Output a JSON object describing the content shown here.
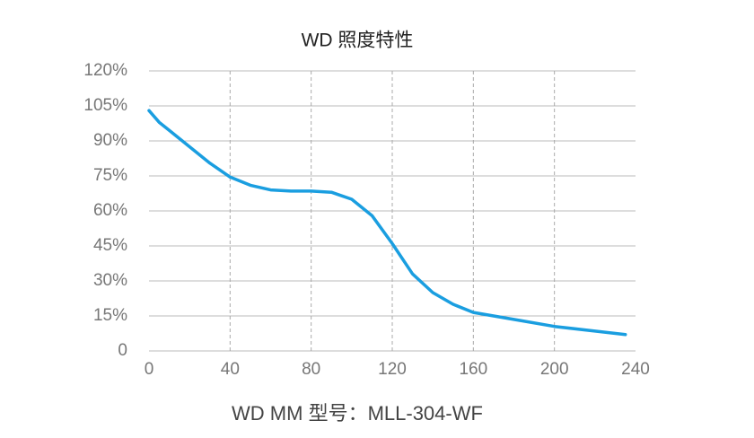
{
  "chart_data": {
    "type": "line",
    "title": "WD 照度特性",
    "x_label": "WD MM 型号：MLL-304-WF",
    "x": [
      0,
      5,
      10,
      15,
      20,
      30,
      40,
      50,
      60,
      70,
      80,
      90,
      100,
      110,
      120,
      130,
      140,
      150,
      160,
      180,
      200,
      220,
      235
    ],
    "series": [
      {
        "name": "WD",
        "color": "#1a9ee0",
        "values": [
          103,
          98,
          94.5,
          91,
          87.5,
          80.5,
          74.5,
          71,
          69,
          68.5,
          68.5,
          68,
          65,
          58,
          46,
          33,
          25,
          20,
          16.5,
          13.5,
          10.5,
          8.5,
          7
        ]
      }
    ],
    "xlim": [
      0,
      240
    ],
    "xticks": [
      0,
      40,
      80,
      120,
      160,
      200,
      240
    ],
    "ylim": [
      0,
      120
    ],
    "yticks": [
      0,
      {
        "value": 15,
        "label": "15%"
      },
      {
        "value": 30,
        "label": "30%"
      },
      {
        "value": 45,
        "label": "45%"
      },
      {
        "value": 60,
        "label": "60%"
      },
      {
        "value": 75,
        "label": "75%"
      },
      {
        "value": 90,
        "label": "90%"
      },
      {
        "value": 105,
        "label": "105%"
      },
      {
        "value": 120,
        "label": "120%"
      }
    ],
    "grid": true
  }
}
